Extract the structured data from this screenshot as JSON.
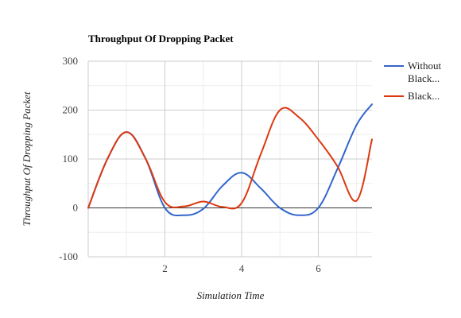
{
  "chart_data": {
    "type": "line",
    "title": "Throughput Of Dropping Packet",
    "xlabel": "Simulation Time",
    "ylabel": "Throughput Of Dropping Packet",
    "xlim": [
      0,
      7.4
    ],
    "ylim": [
      -100,
      300
    ],
    "xticks": [
      2,
      4,
      6
    ],
    "yticks": [
      -100,
      0,
      100,
      200,
      300
    ],
    "grid": true,
    "legend_position": "right",
    "series": [
      {
        "name": "Without Black...",
        "color": "#3366cc",
        "x": [
          0,
          0.5,
          1.0,
          1.5,
          2.0,
          2.5,
          3.0,
          3.5,
          4.0,
          4.5,
          5.0,
          5.5,
          6.0,
          6.5,
          7.0,
          7.4
        ],
        "y": [
          0,
          100,
          155,
          100,
          0,
          -15,
          -2,
          45,
          72,
          40,
          0,
          -15,
          0,
          80,
          170,
          212
        ]
      },
      {
        "name": "Black...",
        "color": "#dc3912",
        "x": [
          0,
          0.5,
          1.0,
          1.5,
          2.0,
          2.5,
          3.0,
          3.5,
          4.0,
          4.5,
          5.0,
          5.5,
          6.0,
          6.5,
          7.0,
          7.4
        ],
        "y": [
          0,
          100,
          155,
          100,
          12,
          3,
          13,
          2,
          10,
          110,
          200,
          185,
          140,
          85,
          15,
          140
        ]
      }
    ]
  }
}
